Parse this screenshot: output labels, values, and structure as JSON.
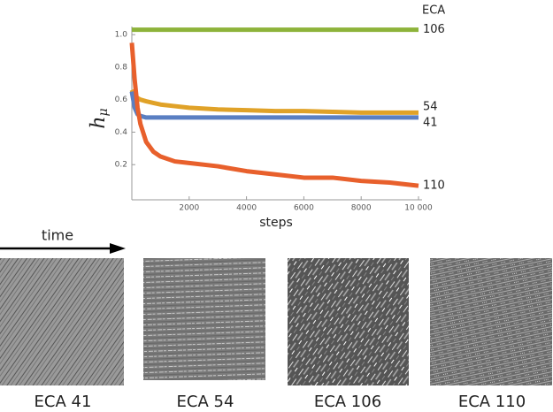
{
  "chart_data": {
    "type": "line",
    "y_label": "h",
    "y_label_subscript": "μ",
    "x_label": "steps",
    "legend_title": "ECA",
    "legend": "right-end",
    "x": [
      0,
      100,
      200,
      300,
      500,
      750,
      1000,
      1500,
      2000,
      3000,
      4000,
      5000,
      6000,
      7000,
      8000,
      9000,
      10000
    ],
    "series": [
      {
        "name": "106",
        "color": "#8db33a",
        "values": [
          1.03,
          1.03,
          1.03,
          1.03,
          1.03,
          1.03,
          1.03,
          1.03,
          1.03,
          1.03,
          1.03,
          1.03,
          1.03,
          1.03,
          1.03,
          1.03,
          1.03
        ]
      },
      {
        "name": "54",
        "color": "#e0a228",
        "values": [
          0.66,
          0.62,
          0.61,
          0.6,
          0.59,
          0.58,
          0.57,
          0.56,
          0.55,
          0.54,
          0.535,
          0.53,
          0.53,
          0.525,
          0.52,
          0.52,
          0.52
        ]
      },
      {
        "name": "41",
        "color": "#5a7fc2",
        "values": [
          0.65,
          0.55,
          0.51,
          0.5,
          0.49,
          0.49,
          0.49,
          0.49,
          0.49,
          0.49,
          0.49,
          0.49,
          0.49,
          0.49,
          0.49,
          0.49,
          0.49
        ]
      },
      {
        "name": "110",
        "color": "#e8602c",
        "values": [
          0.95,
          0.72,
          0.55,
          0.45,
          0.34,
          0.28,
          0.25,
          0.22,
          0.21,
          0.19,
          0.16,
          0.14,
          0.12,
          0.12,
          0.1,
          0.09,
          0.07
        ]
      }
    ],
    "xlim": [
      0,
      10000
    ],
    "xticks": [
      2000,
      4000,
      6000,
      8000,
      {
        "value": 10000,
        "label": "10 000"
      }
    ],
    "ylim": [
      0,
      1.05
    ],
    "yticks": [
      0.2,
      0.4,
      0.6,
      0.8,
      {
        "value": 1,
        "label": "1.0"
      }
    ]
  },
  "panels": {
    "time_label": "time",
    "captions": [
      "ECA 41",
      "ECA 54",
      "ECA 106",
      "ECA 110"
    ]
  }
}
